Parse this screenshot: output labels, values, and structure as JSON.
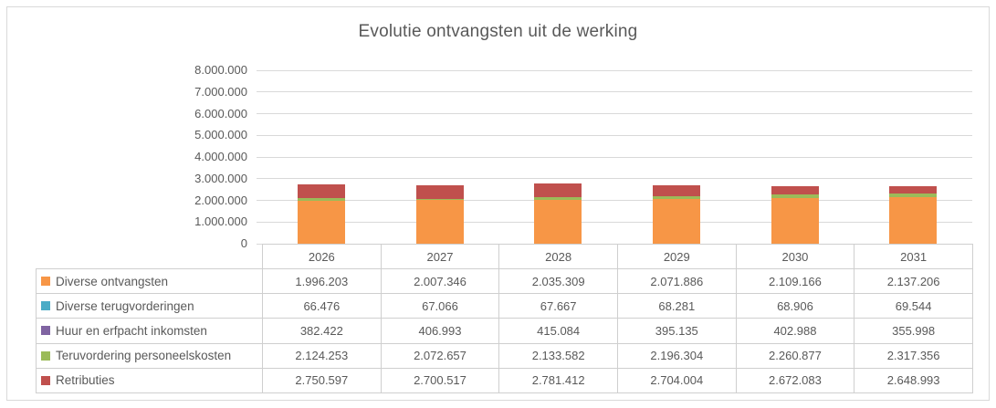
{
  "chart_data": {
    "type": "bar",
    "stacked": true,
    "stack_order": "bottom_to_top",
    "title": "Evolutie ontvangsten uit de werking",
    "categories": [
      "2026",
      "2027",
      "2028",
      "2029",
      "2030",
      "2031"
    ],
    "series": [
      {
        "name": "Retributies",
        "color": "#C0504D",
        "values": [
          2750597,
          2700517,
          2781412,
          2704004,
          2672083,
          2648993
        ]
      },
      {
        "name": "Teruvordering personeelskosten",
        "color": "#9BBB59",
        "values": [
          2124253,
          2072657,
          2133582,
          2196304,
          2260877,
          2317356
        ]
      },
      {
        "name": "Huur en erfpacht inkomsten",
        "color": "#8064A2",
        "values": [
          382422,
          406993,
          415084,
          395135,
          402988,
          355998
        ]
      },
      {
        "name": "Diverse terugvorderingen",
        "color": "#4BACC6",
        "values": [
          66476,
          67066,
          67667,
          68281,
          68906,
          69544
        ]
      },
      {
        "name": "Diverse ontvangsten",
        "color": "#F79646",
        "values": [
          1996203,
          2007346,
          2035309,
          2071886,
          2109166,
          2137206
        ]
      }
    ],
    "ylim": [
      0,
      8000000
    ],
    "ytick_step": 1000000,
    "ytick_labels": [
      "0",
      "1.000.000",
      "2.000.000",
      "3.000.000",
      "4.000.000",
      "5.000.000",
      "6.000.000",
      "7.000.000",
      "8.000.000"
    ],
    "grid": true,
    "legend_position": "left-of-data-table"
  },
  "data_table": {
    "header": [
      "2026",
      "2027",
      "2028",
      "2029",
      "2030",
      "2031"
    ],
    "rows": [
      {
        "label": "Diverse ontvangsten",
        "color": "#F79646",
        "values": [
          "1.996.203",
          "2.007.346",
          "2.035.309",
          "2.071.886",
          "2.109.166",
          "2.137.206"
        ]
      },
      {
        "label": "Diverse terugvorderingen",
        "color": "#4BACC6",
        "values": [
          "66.476",
          "67.066",
          "67.667",
          "68.281",
          "68.906",
          "69.544"
        ]
      },
      {
        "label": "Huur en erfpacht inkomsten",
        "color": "#8064A2",
        "values": [
          "382.422",
          "406.993",
          "415.084",
          "395.135",
          "402.988",
          "355.998"
        ]
      },
      {
        "label": "Teruvordering personeelskosten",
        "color": "#9BBB59",
        "values": [
          "2.124.253",
          "2.072.657",
          "2.133.582",
          "2.196.304",
          "2.260.877",
          "2.317.356"
        ]
      },
      {
        "label": "Retributies",
        "color": "#C0504D",
        "values": [
          "2.750.597",
          "2.700.517",
          "2.781.412",
          "2.704.004",
          "2.672.083",
          "2.648.993"
        ]
      }
    ]
  },
  "colors": {
    "text": "#595959",
    "gridline": "#D9D9D9",
    "table_border": "#CFCFCF",
    "frame_border": "#D9D9D9"
  }
}
